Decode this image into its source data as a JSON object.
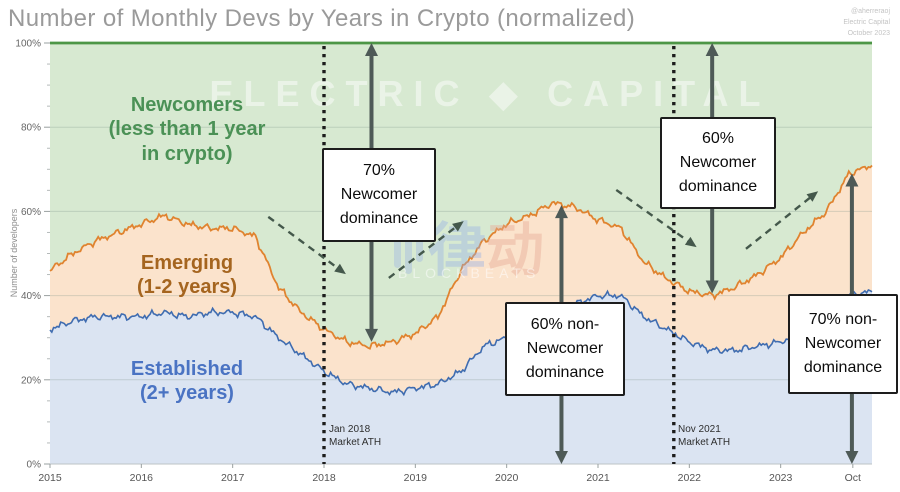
{
  "header": {
    "title": "Number of Monthly Devs by Years in Crypto (normalized)",
    "credit": [
      "@aherreraoj",
      "Electric Capital",
      "October 2023"
    ]
  },
  "watermarks": {
    "brand": "ELECTRIC ◆ CAPITAL",
    "center_cn_1": "律",
    "center_cn_2": "动",
    "center_en": "BLOCKBEATS"
  },
  "chart_data": {
    "type": "area",
    "stacked": true,
    "normalized": true,
    "title": "Number of Monthly Devs by Years in Crypto (normalized)",
    "xlabel": "",
    "ylabel": "Number of developers",
    "ylim": [
      0,
      100
    ],
    "grid": true,
    "legend_position": "labels-inside-areas",
    "x_ticks": [
      "2015",
      "2016",
      "2017",
      "2018",
      "2019",
      "2020",
      "2021",
      "2022",
      "2023",
      "Oct"
    ],
    "x_tick_positions": [
      2015,
      2016,
      2017,
      2018,
      2019,
      2020,
      2021,
      2022,
      2023,
      2023.79
    ],
    "y_ticks": [
      "0%",
      "20%",
      "40%",
      "60%",
      "80%",
      "100%"
    ],
    "x": [
      2015,
      2015.25,
      2015.5,
      2015.75,
      2016,
      2016.25,
      2016.5,
      2016.75,
      2017,
      2017.25,
      2017.5,
      2017.75,
      2018,
      2018.25,
      2018.5,
      2018.75,
      2019,
      2019.25,
      2019.5,
      2019.75,
      2020,
      2020.25,
      2020.5,
      2020.75,
      2021,
      2021.25,
      2021.5,
      2021.75,
      2022,
      2022.25,
      2022.5,
      2022.75,
      2023,
      2023.25,
      2023.5,
      2023.75,
      2024
    ],
    "series": [
      {
        "name": "Established (2+ years)",
        "area_label": "Established\n(2+ years)",
        "color": "#3f6cb0",
        "fill": "#dbe4f2",
        "label_color": "#4a73c3",
        "values": [
          32,
          34,
          35,
          35,
          35,
          36,
          35,
          36,
          36,
          35,
          30,
          26,
          22,
          19,
          18,
          17,
          18,
          19,
          22,
          28,
          30,
          33,
          35,
          38,
          40,
          40,
          35,
          32,
          29,
          27,
          27,
          28,
          29,
          31,
          34,
          40,
          41
        ]
      },
      {
        "name": "Emerging (1-2 years)",
        "area_label": "Emerging\n(1-2 years)",
        "color": "#e0832f",
        "fill": "#fbe3cc",
        "label_color": "#a5651f",
        "values": [
          14,
          16,
          18,
          20,
          22,
          23,
          22,
          20,
          20,
          19,
          12,
          10,
          10,
          10,
          10,
          12,
          13,
          16,
          24,
          25,
          27,
          26,
          27,
          23,
          18,
          16,
          13,
          12,
          12,
          13,
          15,
          17,
          20,
          24,
          26,
          29,
          30
        ]
      },
      {
        "name": "Newcomers (less than 1 year in crypto)",
        "area_label": "Newcomers\n(less than 1 year\nin crypto)",
        "color": "#4d9646",
        "fill": "#d7e9d1",
        "label_color": "#4b9156",
        "values": [
          54,
          50,
          47,
          45,
          43,
          41,
          43,
          44,
          44,
          46,
          58,
          64,
          68,
          71,
          72,
          71,
          69,
          65,
          54,
          47,
          43,
          41,
          38,
          39,
          42,
          44,
          52,
          56,
          59,
          60,
          58,
          55,
          51,
          45,
          40,
          31,
          29
        ]
      }
    ],
    "events": [
      {
        "label": "Jan 2018\nMarket ATH",
        "x": 2018.0
      },
      {
        "label": "Nov 2021\nMarket ATH",
        "x": 2021.83
      }
    ],
    "callouts": [
      {
        "text": "70%\nNewcomer\ndominance",
        "arrow_x": 2018.52,
        "arrow_from_pct": 100,
        "arrow_to_pct": 29
      },
      {
        "text": "60%\nNewcomer\ndominance",
        "arrow_x": 2022.25,
        "arrow_from_pct": 100,
        "arrow_to_pct": 40.5
      },
      {
        "text": "60% non-\nNewcomer\ndominance",
        "arrow_x": 2020.6,
        "arrow_from_pct": 61.5,
        "arrow_to_pct": 0
      },
      {
        "text": "70% non-\nNewcomer\ndominance",
        "arrow_x": 2023.78,
        "arrow_from_pct": 69,
        "arrow_to_pct": 0
      }
    ],
    "trend_arrows": [
      {
        "from": {
          "x": 2017.39,
          "y": 58.7
        },
        "to": {
          "x": 2018.24,
          "y": 45.1
        }
      },
      {
        "from": {
          "x": 2018.71,
          "y": 44.2
        },
        "to": {
          "x": 2019.53,
          "y": 57.7
        }
      },
      {
        "from": {
          "x": 2021.2,
          "y": 65.1
        },
        "to": {
          "x": 2022.08,
          "y": 51.5
        }
      },
      {
        "from": {
          "x": 2022.62,
          "y": 51.1
        },
        "to": {
          "x": 2023.41,
          "y": 64.8
        }
      }
    ]
  }
}
